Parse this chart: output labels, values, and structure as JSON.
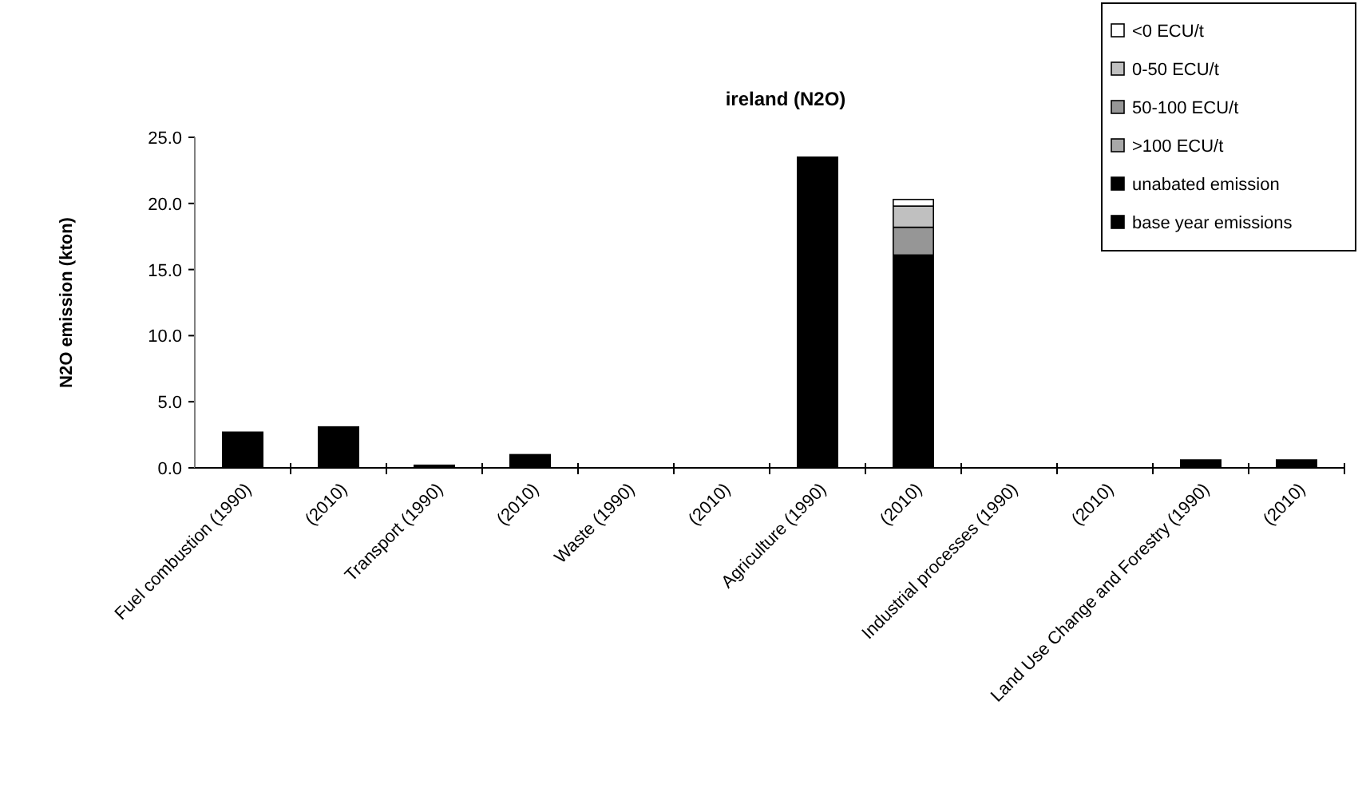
{
  "chart_data": {
    "type": "bar",
    "title": "ireland (N2O)",
    "ylabel": "N2O emission (kton)",
    "stacked": true,
    "legend": "top right",
    "categories": [
      "Fuel combustion (1990)",
      "(2010)",
      "Transport (1990)",
      "(2010)",
      "Waste (1990)",
      "(2010)",
      "Agriculture (1990)",
      "(2010)",
      "Industrial processes (1990)",
      "(2010)",
      "Land Use Change and Forestry (1990)",
      "(2010)"
    ],
    "series": [
      {
        "name": "base year emissions",
        "color": "#000000",
        "values": [
          2.7,
          null,
          0.2,
          null,
          0,
          null,
          23.5,
          null,
          0,
          null,
          0.6,
          null
        ]
      },
      {
        "name": "unabated emission",
        "color": "#000000",
        "values": [
          null,
          3.1,
          null,
          1.0,
          null,
          0,
          null,
          16.1,
          null,
          0,
          null,
          0.6
        ]
      },
      {
        "name": ">100 ECU/t",
        "color": "#a8a8a8",
        "values": [
          null,
          0,
          null,
          0,
          null,
          0,
          null,
          0,
          null,
          0,
          null,
          0
        ]
      },
      {
        "name": "50-100 ECU/t",
        "color": "#969696",
        "values": [
          null,
          0,
          null,
          0,
          null,
          0,
          null,
          2.1,
          null,
          0,
          null,
          0
        ]
      },
      {
        "name": "0-50 ECU/t",
        "color": "#c0c0c0",
        "values": [
          null,
          0,
          null,
          0,
          null,
          0,
          null,
          1.6,
          null,
          0,
          null,
          0
        ]
      },
      {
        "name": "<0 ECU/t",
        "color": "#ffffff",
        "values": [
          null,
          0,
          null,
          0,
          null,
          0,
          null,
          0.5,
          null,
          0,
          null,
          0
        ]
      }
    ],
    "ylim": [
      0,
      25
    ],
    "yticks": [
      {
        "value": 0,
        "label": "0.0"
      },
      {
        "value": 5,
        "label": "5.0"
      },
      {
        "value": 10,
        "label": "10.0"
      },
      {
        "value": 15,
        "label": "15.0"
      },
      {
        "value": 20,
        "label": "20.0"
      },
      {
        "value": 25,
        "label": "25.0"
      }
    ]
  }
}
